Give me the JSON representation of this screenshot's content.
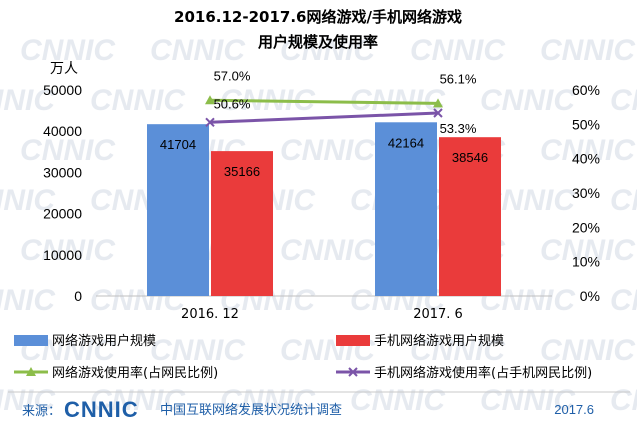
{
  "chart_data": {
    "type": "bar",
    "title_line1": "2016.12-2017.6网络游戏/手机网络游戏",
    "title_line2": "用户规模及使用率",
    "y_left_unit": "万人",
    "y_left_range": [
      0,
      50000
    ],
    "y_left_ticks": [
      "0",
      "10000",
      "20000",
      "30000",
      "40000",
      "50000"
    ],
    "y_right_range": [
      0,
      60
    ],
    "y_right_ticks": [
      "0%",
      "10%",
      "20%",
      "30%",
      "40%",
      "50%",
      "60%"
    ],
    "categories": [
      "2016. 12",
      "2017. 6"
    ],
    "series": [
      {
        "name": "网络游戏用户规模",
        "kind": "bar",
        "axis": "left",
        "color": "#5b8fd8",
        "values": [
          41704,
          42164
        ],
        "labels": [
          "41704",
          "42164"
        ]
      },
      {
        "name": "手机网络游戏用户规模",
        "kind": "bar",
        "axis": "left",
        "color": "#ea3b3b",
        "values": [
          35166,
          38546
        ],
        "labels": [
          "35166",
          "38546"
        ]
      },
      {
        "name": "网络游戏使用率(占网民比例)",
        "kind": "line",
        "axis": "right",
        "color": "#8cbd4a",
        "marker": "triangle",
        "values": [
          57.0,
          56.1
        ],
        "labels": [
          "57.0%",
          "56.1%"
        ]
      },
      {
        "name": "手机网络游戏使用率(占手机网民比例)",
        "kind": "line",
        "axis": "right",
        "color": "#7b54a8",
        "marker": "x",
        "values": [
          50.6,
          53.3
        ],
        "labels": [
          "50.6%",
          "53.3%"
        ]
      }
    ],
    "legend_position": "bottom"
  },
  "footer": {
    "source_label": "来源：",
    "logo_text": "CNNIC",
    "org_name": "中国互联网络发展状况统计调查",
    "date": "2017.6"
  },
  "watermark_text": "CNNIC"
}
